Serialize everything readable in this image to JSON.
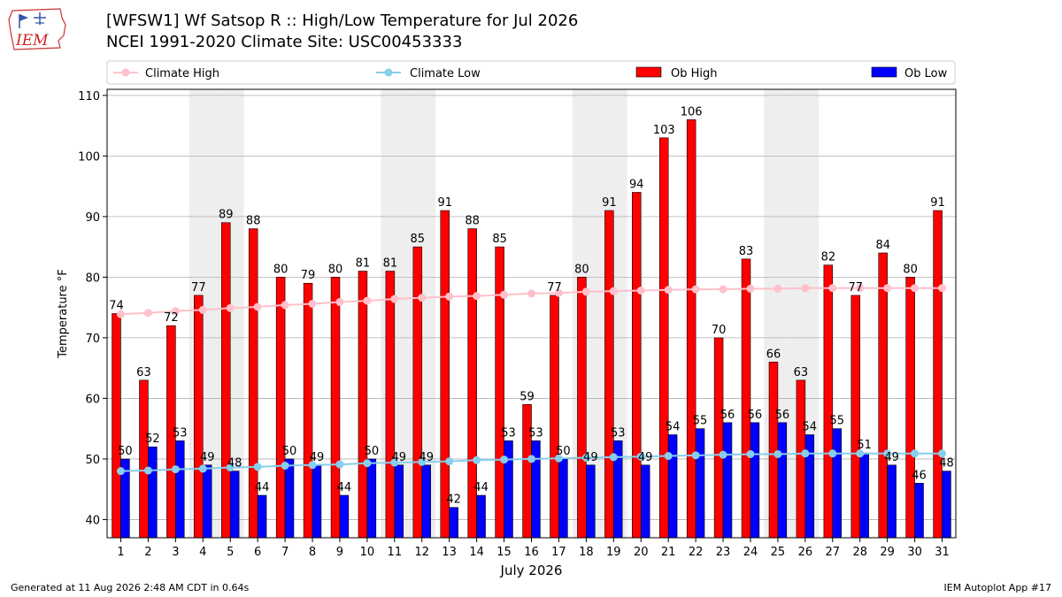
{
  "header": {
    "logo_text": "IEM",
    "title_line1": "[WFSW1] Wf Satsop R :: High/Low Temperature for Jul 2026",
    "title_line2": "NCEI 1991-2020 Climate Site: USC00453333"
  },
  "footer": {
    "generated": "Generated at 11 Aug 2026 2:48 AM CDT in 0.64s",
    "app": "IEM Autoplot App #17"
  },
  "colors": {
    "ob_high": "#ff0000",
    "ob_low": "#0000ff",
    "climate_high": "#ffc0cb",
    "climate_low": "#87ceeb",
    "weekend_shade": "#eeeeee",
    "grid": "#b0b0b0"
  },
  "chart_data": {
    "type": "bar",
    "xlabel": "July 2026",
    "ylabel": "Temperature °F",
    "ylim": [
      37,
      111
    ],
    "yticks": [
      40,
      50,
      60,
      70,
      80,
      90,
      100,
      110
    ],
    "grid": "horizontal",
    "legend_placement": "top",
    "categories": [
      "1",
      "2",
      "3",
      "4",
      "5",
      "6",
      "7",
      "8",
      "9",
      "10",
      "11",
      "12",
      "13",
      "14",
      "15",
      "16",
      "17",
      "18",
      "19",
      "20",
      "21",
      "22",
      "23",
      "24",
      "25",
      "26",
      "27",
      "28",
      "29",
      "30",
      "31"
    ],
    "shaded_days": [
      4,
      5,
      11,
      12,
      18,
      19,
      25,
      26
    ],
    "series": [
      {
        "name": "Ob High",
        "kind": "bar",
        "values": [
          74,
          63,
          72,
          77,
          89,
          88,
          80,
          79,
          80,
          81,
          81,
          85,
          91,
          88,
          85,
          59,
          77,
          80,
          91,
          94,
          103,
          106,
          70,
          83,
          66,
          63,
          82,
          77,
          84,
          80,
          91
        ]
      },
      {
        "name": "Ob Low",
        "kind": "bar",
        "values": [
          50,
          52,
          53,
          49,
          48,
          44,
          50,
          49,
          44,
          50,
          49,
          49,
          42,
          44,
          53,
          53,
          50,
          49,
          53,
          49,
          54,
          55,
          56,
          56,
          56,
          54,
          55,
          51,
          49,
          46,
          48
        ]
      },
      {
        "name": "Climate High",
        "kind": "line",
        "values": [
          73.9,
          74.1,
          74.4,
          74.6,
          74.9,
          75.1,
          75.4,
          75.6,
          75.9,
          76.1,
          76.4,
          76.6,
          76.8,
          76.9,
          77.1,
          77.3,
          77.4,
          77.6,
          77.7,
          77.8,
          77.9,
          78.0,
          78.0,
          78.1,
          78.1,
          78.2,
          78.2,
          78.2,
          78.2,
          78.2,
          78.2
        ]
      },
      {
        "name": "Climate Low",
        "kind": "line",
        "values": [
          48.0,
          48.1,
          48.3,
          48.4,
          48.6,
          48.7,
          48.9,
          49.0,
          49.1,
          49.3,
          49.4,
          49.5,
          49.6,
          49.8,
          49.9,
          50.0,
          50.1,
          50.2,
          50.3,
          50.4,
          50.5,
          50.6,
          50.7,
          50.8,
          50.8,
          50.9,
          50.9,
          50.9,
          50.9,
          50.9,
          50.9
        ]
      }
    ]
  }
}
